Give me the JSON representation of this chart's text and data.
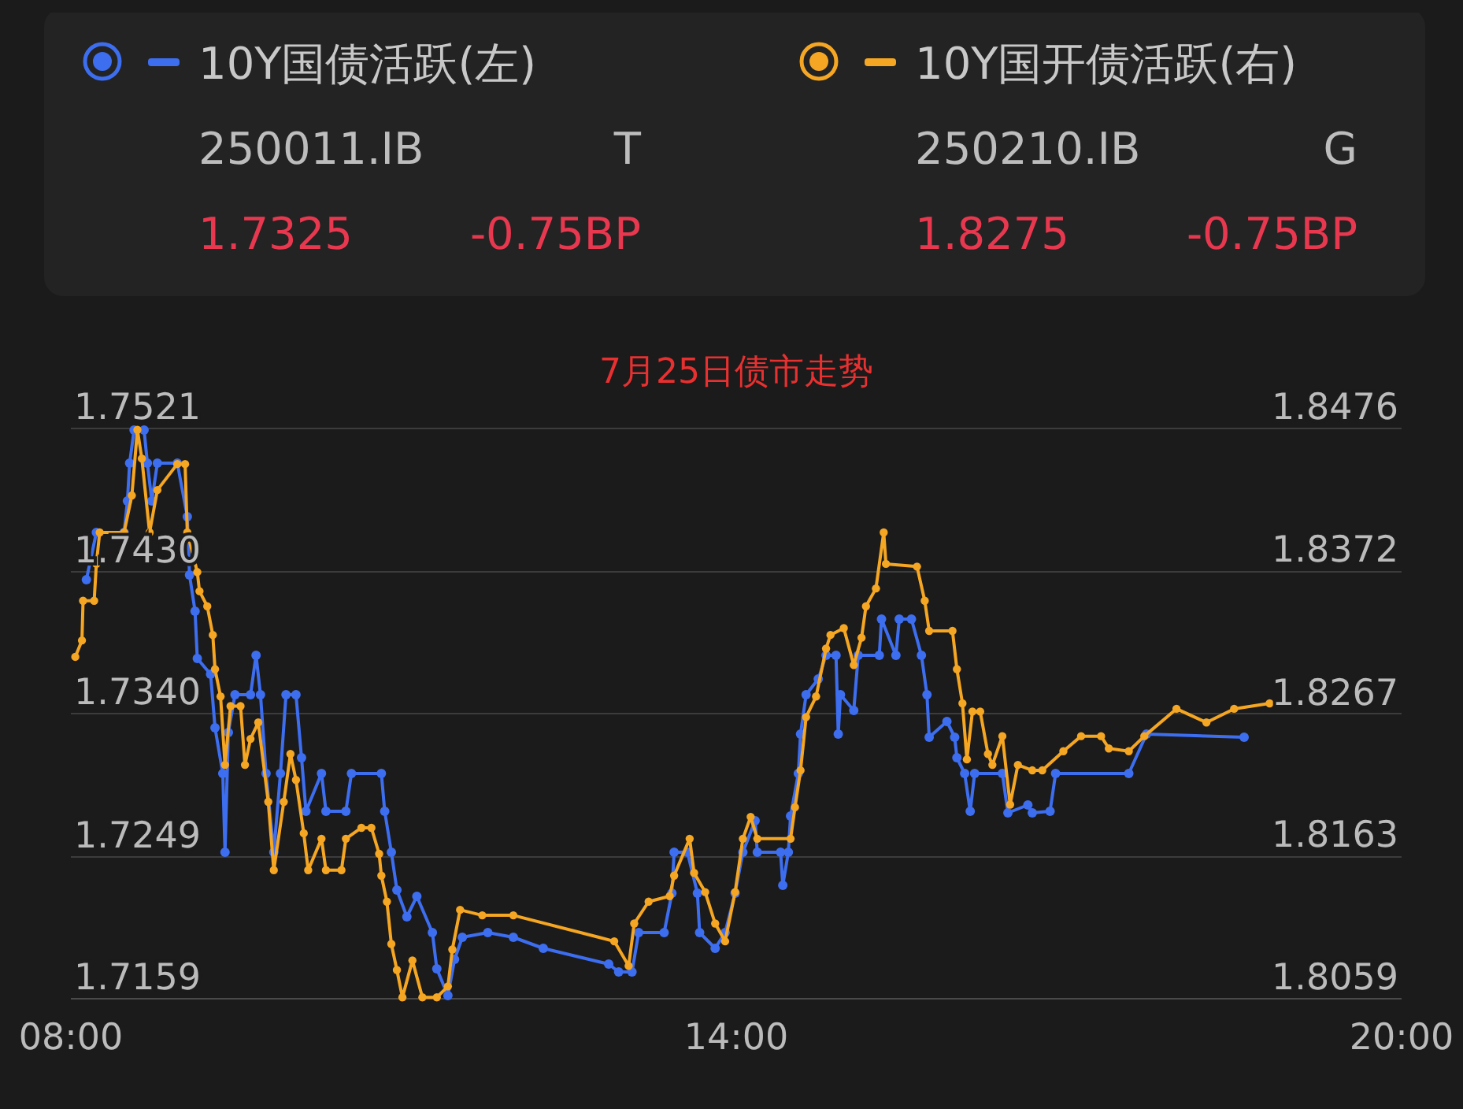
{
  "chart_data": {
    "type": "line",
    "title": "7月25日债市走势",
    "legend": "top",
    "marker": "circle",
    "grid": "y",
    "annotations": [
      "250011.IB",
      "T",
      "1.7325",
      "-0.75BP",
      "250210.IB",
      "G",
      "1.8275",
      "-0.75BP"
    ],
    "xlim": [
      8,
      20
    ],
    "xticks": [
      {
        "value": 8,
        "label": "08:00"
      },
      {
        "value": 14,
        "label": "14:00"
      },
      {
        "value": 20,
        "label": "20:00"
      }
    ],
    "ylim": [
      1.7159,
      1.7521
    ],
    "yticks": [
      1.7159,
      1.7249,
      {
        "value": 1.734,
        "label": "1.7340"
      },
      {
        "value": 1.743,
        "label": "1.7430"
      },
      1.7521
    ],
    "y2lim": [
      1.8059,
      1.8476
    ],
    "y2ticks": [
      1.8059,
      1.8163,
      1.8267,
      1.8372,
      1.8476
    ],
    "series": [
      {
        "name": "10Y国债活跃(左)",
        "color": "#3d6ef0",
        "axis": "y",
        "x": [
          8.14,
          8.23,
          8.48,
          8.51,
          8.53,
          8.57,
          8.66,
          8.69,
          8.73,
          8.78,
          8.96,
          9.05,
          9.07,
          9.12,
          9.14,
          9.26,
          9.3,
          9.37,
          9.39,
          9.42,
          9.48,
          9.62,
          9.67,
          9.71,
          9.76,
          9.83,
          9.89,
          9.94,
          10.03,
          10.08,
          10.12,
          10.26,
          10.3,
          10.48,
          10.53,
          10.8,
          10.83,
          10.89,
          10.94,
          11.03,
          11.12,
          11.26,
          11.3,
          11.4,
          11.46,
          11.53,
          11.76,
          11.99,
          12.26,
          12.85,
          12.94,
          13.06,
          13.12,
          13.35,
          13.42,
          13.44,
          13.56,
          13.65,
          13.67,
          13.81,
          13.9,
          13.99,
          14.06,
          14.17,
          14.19,
          14.4,
          14.42,
          14.47,
          14.49,
          14.56,
          14.58,
          14.63,
          14.74,
          14.81,
          14.9,
          14.92,
          14.94,
          15.06,
          15.1,
          15.29,
          15.31,
          15.44,
          15.47,
          15.58,
          15.67,
          15.72,
          15.74,
          15.9,
          15.97,
          15.99,
          16.06,
          16.11,
          16.15,
          16.4,
          16.45,
          16.63,
          16.67,
          16.83,
          16.88,
          17.54,
          17.7,
          18.58
        ],
        "values": [
          1.7425,
          1.7455,
          1.7455,
          1.7475,
          1.7499,
          1.752,
          1.752,
          1.7499,
          1.7475,
          1.7499,
          1.7499,
          1.7465,
          1.7428,
          1.7405,
          1.7375,
          1.7365,
          1.7331,
          1.7302,
          1.7252,
          1.7328,
          1.7352,
          1.7352,
          1.7377,
          1.7352,
          1.7302,
          1.7252,
          1.7302,
          1.7352,
          1.7352,
          1.7312,
          1.7278,
          1.7302,
          1.7278,
          1.7278,
          1.7302,
          1.7302,
          1.7278,
          1.7252,
          1.7228,
          1.7211,
          1.7224,
          1.7201,
          1.7178,
          1.7161,
          1.7184,
          1.7198,
          1.7201,
          1.7198,
          1.7191,
          1.7181,
          1.7176,
          1.7176,
          1.7201,
          1.7201,
          1.7226,
          1.7252,
          1.7252,
          1.7226,
          1.7201,
          1.7191,
          1.7201,
          1.7226,
          1.7252,
          1.7272,
          1.7252,
          1.7252,
          1.7231,
          1.7252,
          1.7275,
          1.7302,
          1.7327,
          1.7352,
          1.7362,
          1.7377,
          1.7377,
          1.7327,
          1.7352,
          1.7342,
          1.7377,
          1.7377,
          1.74,
          1.7377,
          1.74,
          1.74,
          1.7377,
          1.7352,
          1.7325,
          1.7335,
          1.7325,
          1.7312,
          1.7302,
          1.7278,
          1.7302,
          1.7302,
          1.7277,
          1.7282,
          1.7277,
          1.7278,
          1.7302,
          1.7302,
          1.7327,
          1.7325
        ]
      },
      {
        "name": "10Y国开债活跃(右)",
        "color": "#f5a623",
        "axis": "y2",
        "x": [
          8.04,
          8.1,
          8.11,
          8.21,
          8.23,
          8.26,
          8.48,
          8.55,
          8.6,
          8.64,
          8.71,
          8.78,
          8.96,
          9.03,
          9.05,
          9.14,
          9.16,
          9.23,
          9.28,
          9.3,
          9.35,
          9.39,
          9.44,
          9.53,
          9.57,
          9.62,
          9.69,
          9.78,
          9.83,
          9.92,
          9.98,
          10.03,
          10.1,
          10.14,
          10.26,
          10.3,
          10.44,
          10.48,
          10.62,
          10.71,
          10.78,
          10.8,
          10.85,
          10.89,
          10.94,
          10.99,
          11.08,
          11.17,
          11.3,
          11.4,
          11.44,
          11.51,
          11.71,
          11.99,
          12.9,
          13.03,
          13.08,
          13.21,
          13.4,
          13.44,
          13.58,
          13.62,
          13.72,
          13.81,
          13.9,
          13.99,
          14.06,
          14.13,
          14.19,
          14.49,
          14.53,
          14.58,
          14.63,
          14.72,
          14.81,
          14.85,
          14.97,
          15.06,
          15.13,
          15.17,
          15.26,
          15.33,
          15.35,
          15.63,
          15.7,
          15.74,
          15.95,
          15.99,
          16.04,
          16.08,
          16.13,
          16.2,
          16.27,
          16.31,
          16.4,
          16.47,
          16.54,
          16.67,
          16.76,
          16.95,
          17.11,
          17.29,
          17.36,
          17.54,
          17.68,
          17.97,
          18.24,
          18.49,
          18.81
        ],
        "values": [
          1.8309,
          1.8321,
          1.835,
          1.835,
          1.8377,
          1.84,
          1.84,
          1.8427,
          1.8475,
          1.8454,
          1.84,
          1.8431,
          1.845,
          1.845,
          1.84,
          1.8371,
          1.8357,
          1.8346,
          1.8325,
          1.83,
          1.828,
          1.823,
          1.8273,
          1.8273,
          1.823,
          1.8249,
          1.8261,
          1.8203,
          1.8153,
          1.8203,
          1.8238,
          1.8219,
          1.818,
          1.8153,
          1.8176,
          1.8153,
          1.8153,
          1.8176,
          1.8184,
          1.8184,
          1.8165,
          1.8149,
          1.813,
          1.8099,
          1.808,
          1.806,
          1.8087,
          1.806,
          1.806,
          1.8068,
          1.8095,
          1.8124,
          1.812,
          1.812,
          1.8101,
          1.8083,
          1.8114,
          1.813,
          1.8134,
          1.8149,
          1.8176,
          1.8151,
          1.8137,
          1.8114,
          1.8101,
          1.8137,
          1.8176,
          1.8192,
          1.8176,
          1.8176,
          1.8199,
          1.8226,
          1.8265,
          1.828,
          1.8315,
          1.8325,
          1.833,
          1.8303,
          1.8323,
          1.8346,
          1.8359,
          1.84,
          1.8377,
          1.8375,
          1.835,
          1.8328,
          1.8328,
          1.83,
          1.8275,
          1.8234,
          1.8269,
          1.8269,
          1.8238,
          1.823,
          1.8251,
          1.8201,
          1.823,
          1.8226,
          1.8226,
          1.824,
          1.8251,
          1.8251,
          1.8242,
          1.824,
          1.8251,
          1.8271,
          1.8261,
          1.8271,
          1.8275
        ]
      }
    ]
  }
}
